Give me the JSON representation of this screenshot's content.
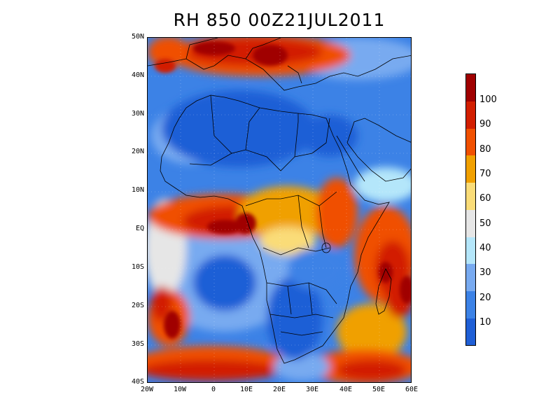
{
  "title": "RH 850 00Z21JUL2011",
  "map": {
    "lat_labels": [
      "50N",
      "40N",
      "30N",
      "20N",
      "10N",
      "EQ",
      "10S",
      "20S",
      "30S",
      "40S"
    ],
    "lon_labels": [
      "20W",
      "10W",
      "0",
      "10E",
      "20E",
      "30E",
      "40E",
      "50E",
      "60E"
    ],
    "lat_range": [
      -40,
      50
    ],
    "lon_range": [
      -20,
      60
    ]
  },
  "colorbar": {
    "labels": [
      "10",
      "20",
      "30",
      "40",
      "50",
      "60",
      "70",
      "80",
      "90",
      "100"
    ],
    "colors": [
      "#1f5fd6",
      "#3c82e6",
      "#78aaf0",
      "#b4e6fa",
      "#e6e6e6",
      "#fadc78",
      "#f0a000",
      "#f05000",
      "#d21e00",
      "#a00000"
    ]
  }
}
